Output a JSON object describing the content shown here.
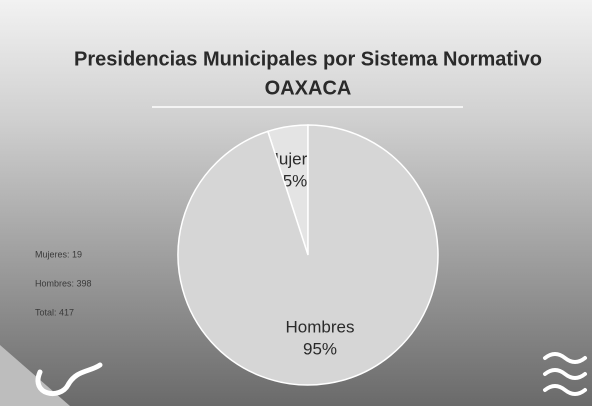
{
  "chart_data": {
    "type": "pie",
    "title": [
      "Presidencias Municipales por Sistema Normativo",
      "OAXACA"
    ],
    "categories": [
      "Mujeres",
      "Hombres"
    ],
    "values": [
      5,
      95
    ],
    "value_labels": [
      "5%",
      "95%"
    ],
    "colors": [
      "#e4e4e4",
      "#d6d6d6"
    ],
    "annotations": [
      "Mujeres: 19",
      "Hombres: 398",
      "Total: 417"
    ]
  }
}
